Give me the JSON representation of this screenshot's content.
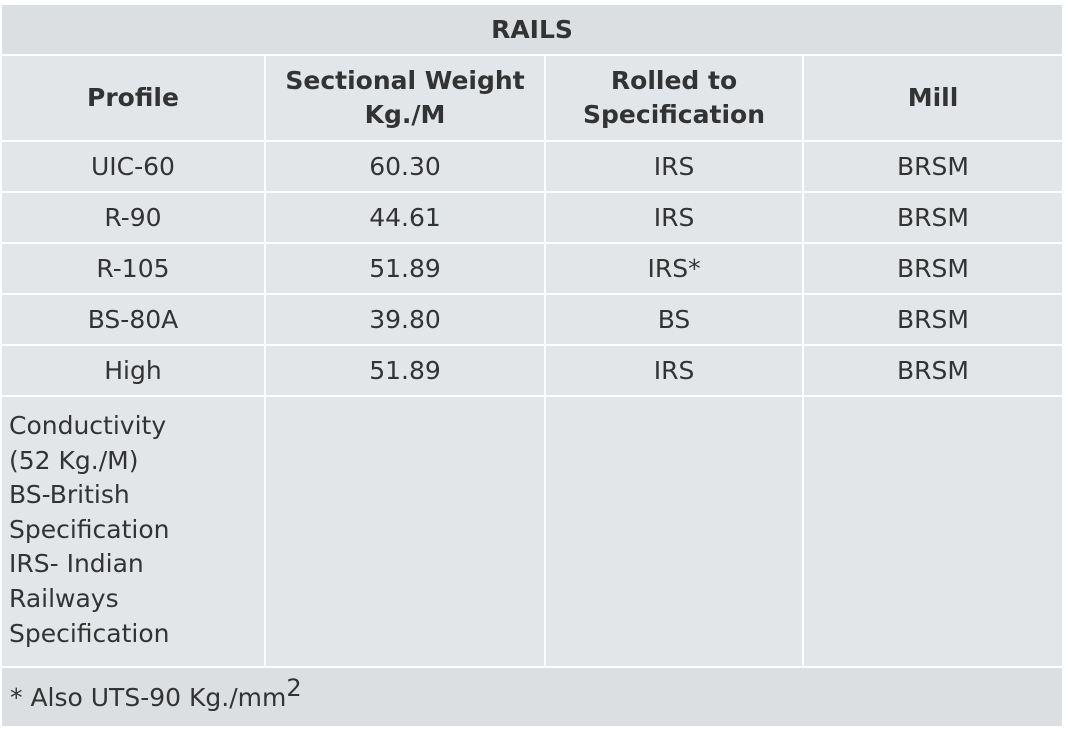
{
  "table": {
    "title": "RAILS",
    "headers": [
      [
        "Profile"
      ],
      [
        "Sectional Weight",
        "Kg./M"
      ],
      [
        "Rolled to",
        "Specification"
      ],
      [
        "Mill"
      ]
    ],
    "rows": [
      [
        "UIC-60",
        "60.30",
        "IRS",
        "BRSM"
      ],
      [
        "R-90",
        "44.61",
        "IRS",
        "BRSM"
      ],
      [
        "R-105",
        "51.89",
        "IRS*",
        "BRSM"
      ],
      [
        "BS-80A",
        "39.80",
        "BS",
        "BRSM"
      ],
      [
        "High",
        "51.89",
        "IRS",
        "BRSM"
      ]
    ],
    "notes": [
      "Conductivity",
      "(52 Kg./M)",
      "BS-British",
      "Specification",
      "IRS- Indian",
      "Railways",
      "Specification"
    ],
    "footnote": {
      "text": "* Also UTS-90 Kg./mm",
      "superscript": "2"
    }
  }
}
